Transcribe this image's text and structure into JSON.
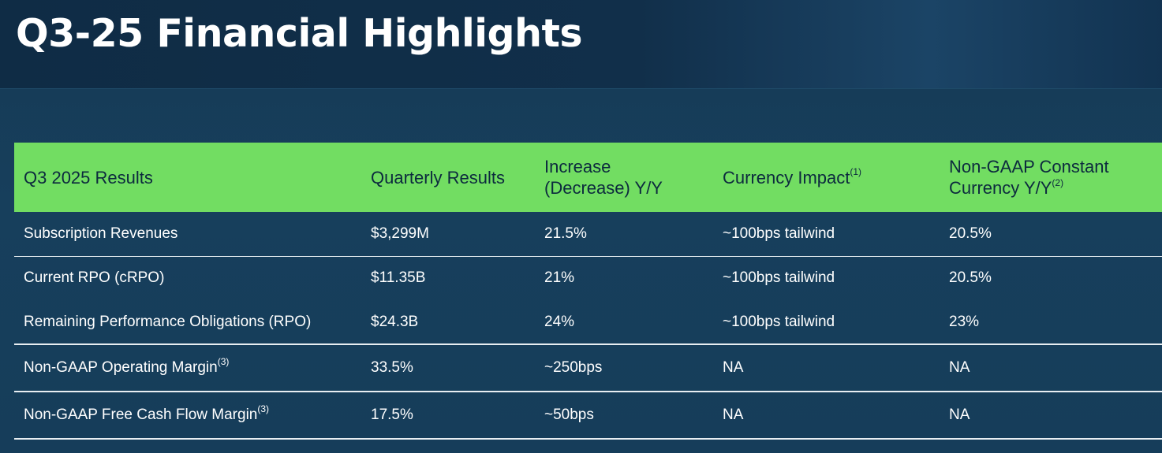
{
  "title": "Q3-25 Financial Highlights",
  "table": {
    "headers": {
      "col1": "Q3 2025 Results",
      "col2": "Quarterly Results",
      "col3_line1": "Increase",
      "col3_line2": "(Decrease) Y/Y",
      "col4": "Currency Impact",
      "col4_note": "(1)",
      "col5_line1": "Non-GAAP Constant",
      "col5_line2": "Currency Y/Y",
      "col5_note": "(2)"
    },
    "rows": [
      {
        "metric": "Subscription Revenues",
        "note": "",
        "quarterly": "$3,299M",
        "change": "21.5%",
        "currency": "~100bps tailwind",
        "constant": "20.5%"
      },
      {
        "metric": "Current RPO (cRPO)",
        "note": "",
        "quarterly": "$11.35B",
        "change": "21%",
        "currency": "~100bps tailwind",
        "constant": "20.5%"
      },
      {
        "metric": "Remaining Performance Obligations (RPO)",
        "note": "",
        "quarterly": "$24.3B",
        "change": "24%",
        "currency": "~100bps tailwind",
        "constant": "23%"
      },
      {
        "metric": "Non-GAAP Operating Margin",
        "note": "(3)",
        "quarterly": "33.5%",
        "change": "~250bps",
        "currency": "NA",
        "constant": "NA"
      },
      {
        "metric": "Non-GAAP Free Cash Flow Margin",
        "note": "(3)",
        "quarterly": "17.5%",
        "change": "~50bps",
        "currency": "NA",
        "constant": "NA"
      }
    ]
  },
  "colors": {
    "header_bg": "#72dd62",
    "background": "#163a55",
    "row_divider": "#e8eef2"
  }
}
